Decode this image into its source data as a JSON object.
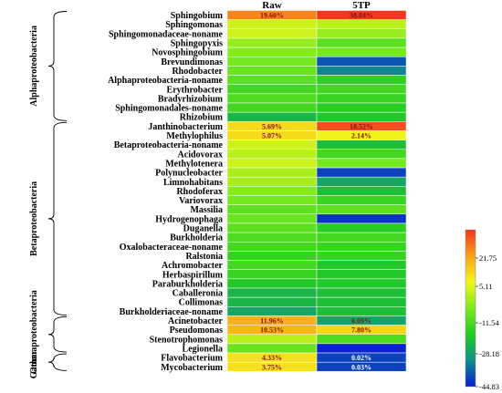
{
  "chart_data": {
    "type": "heatmap",
    "columns": [
      "Raw",
      "5TP"
    ],
    "groups": [
      {
        "label": "Alphaproteobacteria",
        "rows": [
          "Sphingobium",
          "Sphingomonas",
          "Sphingomonadaceae-noname",
          "Sphingopyxis",
          "Novosphingobium",
          "Brevundimonas",
          "Rhodobacter",
          "Alphaproteobacteria-noname",
          "Erythrobacter",
          "Bradyrhizobium",
          "Sphingomonadales-noname",
          "Rhizobium"
        ]
      },
      {
        "label": "Betaproteobacteria",
        "rows": [
          "Janthinobacterium",
          "Methylophilus",
          "Betaproteobacteria-noname",
          "Acidovorax",
          "Methylotenera",
          "Polynucleobacter",
          "Limnohabitans",
          "Rhodoferax",
          "Variovorax",
          "Massilia",
          "Hydrogenophaga",
          "Duganella",
          "Burkholderia",
          "Oxalobacteraceae-noname",
          "Ralstonia",
          "Achromobacter",
          "Herbaspirillum",
          "Paraburkholderia",
          "Caballeronia",
          "Collimonas",
          "Burkholderiaceae-noname"
        ]
      },
      {
        "label": "Gammaproteobacteria",
        "rows": [
          "Acinetobacter",
          "Pseudomonas",
          "Stenotrophomonas",
          "Legionella"
        ]
      },
      {
        "label": "Other",
        "rows": [
          "Flavobacterium",
          "Mycobacterium"
        ]
      }
    ],
    "rows": [
      {
        "name": "Sphingobium",
        "values": [
          28,
          38
        ],
        "labels": [
          "19.60%",
          "38.84%"
        ]
      },
      {
        "name": "Sphingomonas",
        "values": [
          6,
          4
        ],
        "labels": [
          "",
          ""
        ]
      },
      {
        "name": "Sphingomonadaceae-noname",
        "values": [
          6,
          0
        ],
        "labels": [
          "",
          ""
        ]
      },
      {
        "name": "Sphingopyxis",
        "values": [
          0,
          -8
        ],
        "labels": [
          "",
          ""
        ]
      },
      {
        "name": "Novosphingobium",
        "values": [
          -2,
          -4
        ],
        "labels": [
          "",
          ""
        ]
      },
      {
        "name": "Brevundimonas",
        "values": [
          -4,
          -38
        ],
        "labels": [
          "",
          ""
        ]
      },
      {
        "name": "Rhodobacter",
        "values": [
          -6,
          -32
        ],
        "labels": [
          "",
          ""
        ]
      },
      {
        "name": "Alphaproteobacteria-noname",
        "values": [
          -8,
          -15
        ],
        "labels": [
          "",
          ""
        ]
      },
      {
        "name": "Erythrobacter",
        "values": [
          -12,
          -12
        ],
        "labels": [
          "",
          ""
        ]
      },
      {
        "name": "Bradyrhizobium",
        "values": [
          -10,
          -14
        ],
        "labels": [
          "",
          ""
        ]
      },
      {
        "name": "Sphingomonadales-noname",
        "values": [
          -12,
          -16
        ],
        "labels": [
          "",
          ""
        ]
      },
      {
        "name": "Rhizobium",
        "values": [
          -22,
          -18
        ],
        "labels": [
          "",
          ""
        ]
      },
      {
        "name": "Janthinobacterium",
        "values": [
          15,
          35
        ],
        "labels": [
          "5.69%",
          "18.52%"
        ]
      },
      {
        "name": "Methylophilus",
        "values": [
          15,
          10
        ],
        "labels": [
          "5.07%",
          "2.14%"
        ]
      },
      {
        "name": "Betaproteobacteria-noname",
        "values": [
          6,
          -20
        ],
        "labels": [
          "",
          ""
        ]
      },
      {
        "name": "Acidovorax",
        "values": [
          4,
          -12
        ],
        "labels": [
          "",
          ""
        ]
      },
      {
        "name": "Methylotenera",
        "values": [
          6,
          -4
        ],
        "labels": [
          "",
          ""
        ]
      },
      {
        "name": "Polynucleobacter",
        "values": [
          2,
          -40
        ],
        "labels": [
          "",
          ""
        ]
      },
      {
        "name": "Limnohabitans",
        "values": [
          2,
          -26
        ],
        "labels": [
          "",
          ""
        ]
      },
      {
        "name": "Rhodoferax",
        "values": [
          -2,
          -20
        ],
        "labels": [
          "",
          ""
        ]
      },
      {
        "name": "Variovorax",
        "values": [
          -4,
          -14
        ],
        "labels": [
          "",
          ""
        ]
      },
      {
        "name": "Massilia",
        "values": [
          -8,
          -8
        ],
        "labels": [
          "",
          ""
        ]
      },
      {
        "name": "Hydrogenophaga",
        "values": [
          -6,
          -42
        ],
        "labels": [
          "",
          ""
        ]
      },
      {
        "name": "Duganella",
        "values": [
          -8,
          -16
        ],
        "labels": [
          "",
          ""
        ]
      },
      {
        "name": "Burkholderia",
        "values": [
          -10,
          -12
        ],
        "labels": [
          "",
          ""
        ]
      },
      {
        "name": "Oxalobacteraceae-noname",
        "values": [
          -12,
          -14
        ],
        "labels": [
          "",
          ""
        ]
      },
      {
        "name": "Ralstonia",
        "values": [
          -14,
          -14
        ],
        "labels": [
          "",
          ""
        ]
      },
      {
        "name": "Achromobacter",
        "values": [
          -12,
          -18
        ],
        "labels": [
          "",
          ""
        ]
      },
      {
        "name": "Herbaspirillum",
        "values": [
          -14,
          -18
        ],
        "labels": [
          "",
          ""
        ]
      },
      {
        "name": "Paraburkholderia",
        "values": [
          -18,
          -18
        ],
        "labels": [
          "",
          ""
        ]
      },
      {
        "name": "Caballeronia",
        "values": [
          -22,
          -20
        ],
        "labels": [
          "",
          ""
        ]
      },
      {
        "name": "Collimonas",
        "values": [
          -22,
          -20
        ],
        "labels": [
          "",
          ""
        ]
      },
      {
        "name": "Burkholderiaceae-noname",
        "values": [
          -26,
          -20
        ],
        "labels": [
          "",
          ""
        ]
      },
      {
        "name": "Acinetobacter",
        "values": [
          22,
          -26
        ],
        "labels": [
          "11.96%",
          "0.09%"
        ]
      },
      {
        "name": "Pseudomonas",
        "values": [
          21,
          16
        ],
        "labels": [
          "10.53%",
          "7.80%"
        ]
      },
      {
        "name": "Stenotrophomonas",
        "values": [
          4,
          -10
        ],
        "labels": [
          "",
          ""
        ]
      },
      {
        "name": "Legionella",
        "values": [
          -6,
          -44
        ],
        "labels": [
          "",
          ""
        ]
      },
      {
        "name": "Flavobacterium",
        "values": [
          14,
          -40
        ],
        "labels": [
          "4.33%",
          "0.02%"
        ]
      },
      {
        "name": "Mycobacterium",
        "values": [
          14,
          -40
        ],
        "labels": [
          "3.75%",
          "0.03%"
        ]
      }
    ],
    "colorbar": {
      "ticks": [
        "21.75",
        "5.11",
        "-11.54",
        "-28.18",
        "-44.83"
      ],
      "range": [
        -44.83,
        38.4
      ],
      "stops": [
        "#0b1bd6",
        "#0d8f8a",
        "#22cc22",
        "#7bea1e",
        "#f5f51a",
        "#f7a21b",
        "#f3341c"
      ]
    }
  }
}
